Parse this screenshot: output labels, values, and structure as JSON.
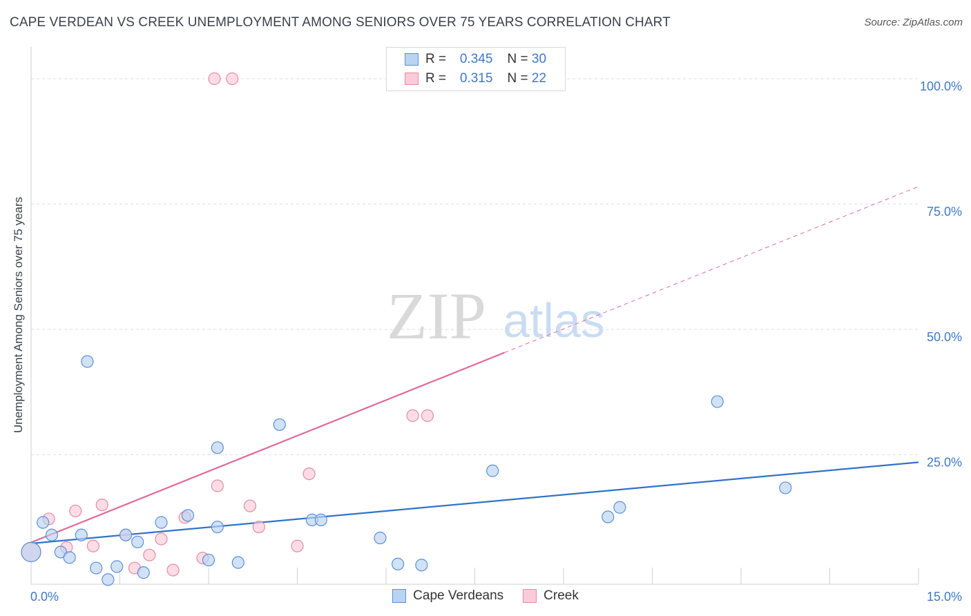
{
  "header": {
    "title": "CAPE VERDEAN VS CREEK UNEMPLOYMENT AMONG SENIORS OVER 75 YEARS CORRELATION CHART",
    "source": "Source: ZipAtlas.com"
  },
  "watermark": {
    "zip": "ZIP",
    "atlas": "atlas"
  },
  "legend": {
    "rows": [
      {
        "r_label": "R =",
        "r_value": "0.345",
        "n_label": "N =",
        "n_value": "30"
      },
      {
        "r_label": "R =",
        "r_value": "0.315",
        "n_label": "N =",
        "n_value": "22"
      }
    ]
  },
  "colors": {
    "cape_fill": "#b9d3f3",
    "cape_stroke": "#5b8fd4",
    "cape_line": "#2f72c9",
    "creek_fill": "#fbcbd8",
    "creek_stroke": "#e68aa6",
    "creek_line": "#e06a92",
    "axis_text": "#3c78c8",
    "grid": "#dddddd"
  },
  "chart_data": {
    "type": "scatter",
    "title": "CAPE VERDEAN VS CREEK UNEMPLOYMENT AMONG SENIORS OVER 75 YEARS CORRELATION CHART",
    "xlabel": "",
    "ylabel": "Unemployment Among Seniors over 75 years",
    "xlim": [
      0,
      15
    ],
    "ylim": [
      0,
      100
    ],
    "x_tick_labels": [
      "0.0%",
      "15.0%"
    ],
    "y_ticks": [
      25,
      50,
      75,
      100
    ],
    "y_tick_labels": [
      "25.0%",
      "50.0%",
      "75.0%",
      "100.0%"
    ],
    "grid": true,
    "legend_position": "top-center",
    "series": [
      {
        "name": "Cape Verdeans",
        "r": 0.345,
        "n": 30,
        "trend": {
          "x0": 0,
          "y0": 7.3,
          "x1": 15,
          "y1": 23.5,
          "solid_to_x": 15
        },
        "points": [
          [
            0.0,
            5.6
          ],
          [
            0.2,
            11.5
          ],
          [
            0.35,
            9.0
          ],
          [
            0.5,
            5.6
          ],
          [
            0.65,
            4.5
          ],
          [
            0.85,
            9.0
          ],
          [
            0.95,
            43.6
          ],
          [
            1.1,
            2.4
          ],
          [
            1.3,
            0.1
          ],
          [
            1.45,
            2.7
          ],
          [
            1.6,
            9.0
          ],
          [
            1.8,
            7.6
          ],
          [
            1.9,
            1.5
          ],
          [
            2.2,
            11.5
          ],
          [
            2.65,
            12.9
          ],
          [
            3.0,
            4.0
          ],
          [
            3.15,
            10.6
          ],
          [
            3.15,
            26.4
          ],
          [
            3.5,
            3.5
          ],
          [
            4.2,
            31.0
          ],
          [
            4.75,
            12.0
          ],
          [
            4.9,
            12.0
          ],
          [
            5.9,
            8.4
          ],
          [
            6.2,
            3.2
          ],
          [
            6.6,
            3.0
          ],
          [
            7.8,
            21.8
          ],
          [
            9.75,
            12.6
          ],
          [
            9.95,
            14.5
          ],
          [
            11.6,
            35.6
          ],
          [
            12.75,
            18.4
          ]
        ]
      },
      {
        "name": "Creek",
        "r": 0.315,
        "n": 22,
        "trend": {
          "x0": 0,
          "y0": 7.5,
          "x1": 15,
          "y1": 78.5,
          "solid_to_x": 8.0
        },
        "points": [
          [
            0.0,
            5.6
          ],
          [
            0.3,
            12.2
          ],
          [
            0.6,
            6.5
          ],
          [
            0.75,
            13.8
          ],
          [
            1.05,
            6.8
          ],
          [
            1.2,
            15.0
          ],
          [
            1.6,
            9.0
          ],
          [
            1.75,
            2.4
          ],
          [
            2.0,
            5.0
          ],
          [
            2.2,
            8.2
          ],
          [
            2.4,
            2.0
          ],
          [
            2.6,
            12.5
          ],
          [
            2.9,
            4.4
          ],
          [
            3.1,
            100
          ],
          [
            3.4,
            100
          ],
          [
            3.15,
            18.8
          ],
          [
            3.7,
            14.8
          ],
          [
            3.85,
            10.6
          ],
          [
            4.5,
            6.8
          ],
          [
            4.7,
            21.2
          ],
          [
            6.45,
            32.8
          ],
          [
            6.7,
            32.8
          ]
        ]
      }
    ]
  }
}
